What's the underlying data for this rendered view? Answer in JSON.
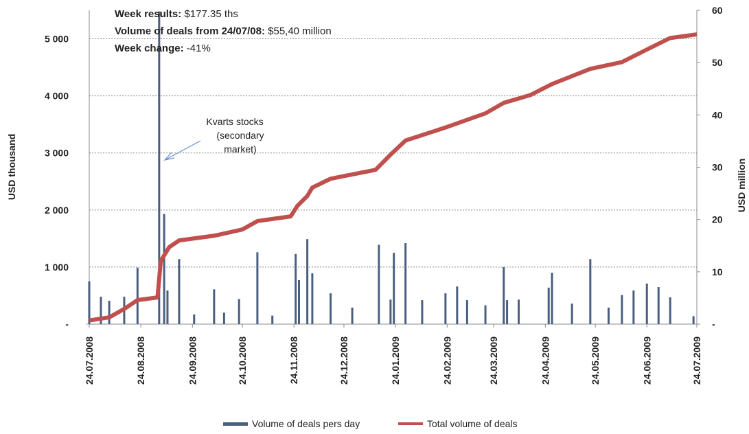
{
  "chart_data": {
    "type": "bar-line",
    "ylabel": "USD thousand",
    "y2label": "USD million",
    "notes": [
      {
        "label": "Week results:",
        "value": "$177.35 ths"
      },
      {
        "label": "Volume of deals from 24/07/08:",
        "value": "$55,40 million"
      },
      {
        "label": "Week change:",
        "value": "-41%"
      }
    ],
    "annotation": [
      "Kvarts stocks",
      "(secondary",
      "market)"
    ],
    "xlim": [
      "24.07.2008",
      "24.07.2009"
    ],
    "xticks": [
      "24.07.2008",
      "24.08.2008",
      "24.09.2008",
      "24.10.2008",
      "24.11.2008",
      "24.12.2008",
      "24.01.2009",
      "24.02.2009",
      "24.03.2009",
      "24.04.2009",
      "24.05.2009",
      "24.06.2009",
      "24.07.2009"
    ],
    "ylim": [
      0,
      5500
    ],
    "yticks": [
      {
        "value": 0,
        "label": "-"
      },
      {
        "value": 1000,
        "label": "1 000"
      },
      {
        "value": 2000,
        "label": "2 000"
      },
      {
        "value": 3000,
        "label": "3 000"
      },
      {
        "value": 4000,
        "label": "4 000"
      },
      {
        "value": 5000,
        "label": "5 000"
      }
    ],
    "y2lim": [
      0,
      60
    ],
    "y2ticks": [
      {
        "value": 0,
        "label": "-"
      },
      10,
      20,
      30,
      40,
      50,
      60
    ],
    "grid": true,
    "series": [
      {
        "name": "Volume of deals pers day",
        "type": "bar",
        "color": "#4a5f80",
        "x": [
          "24.07.2008",
          "31.07.2008",
          "05.08.2008",
          "14.08.2008",
          "22.08.2008",
          "04.09.2008",
          "07.09.2008",
          "09.09.2008",
          "16.09.2008",
          "25.09.2008",
          "07.10.2008",
          "13.10.2008",
          "22.10.2008",
          "02.11.2008",
          "11.11.2008",
          "25.11.2008",
          "27.11.2008",
          "02.12.2008",
          "05.12.2008",
          "16.12.2008",
          "29.12.2008",
          "14.01.2009",
          "21.01.2009",
          "23.01.2009",
          "30.01.2009",
          "09.02.2009",
          "23.02.2009",
          "02.03.2009",
          "08.03.2009",
          "19.03.2009",
          "30.03.2009",
          "01.04.2009",
          "08.04.2009",
          "26.04.2009",
          "28.04.2009",
          "10.05.2009",
          "21.05.2009",
          "01.06.2009",
          "09.06.2009",
          "16.06.2009",
          "24.06.2009",
          "01.07.2009",
          "08.07.2009",
          "22.07.2009"
        ],
        "values": [
          750,
          480,
          410,
          480,
          990,
          5480,
          1930,
          590,
          1140,
          170,
          610,
          200,
          440,
          1260,
          150,
          1230,
          770,
          1490,
          890,
          540,
          290,
          1390,
          430,
          1250,
          1420,
          420,
          540,
          660,
          420,
          330,
          1000,
          420,
          430,
          640,
          900,
          360,
          1140,
          290,
          510,
          590,
          710,
          650,
          470,
          140
        ]
      },
      {
        "name": "Total volume of deals",
        "type": "line",
        "axis": "y2",
        "color": "#c0504d",
        "x": [
          "24.07.2008",
          "05.08.2008",
          "14.08.2008",
          "22.08.2008",
          "03.09.2008",
          "05.09.2008",
          "10.09.2008",
          "16.09.2008",
          "07.10.2008",
          "24.10.2008",
          "02.11.2008",
          "22.11.2008",
          "26.11.2008",
          "02.12.2008",
          "05.12.2008",
          "16.12.2008",
          "12.01.2009",
          "21.01.2009",
          "30.01.2009",
          "24.02.2009",
          "19.03.2009",
          "30.03.2009",
          "15.04.2009",
          "28.04.2009",
          "21.05.2009",
          "09.06.2009",
          "24.06.2009",
          "08.07.2009",
          "24.07.2009"
        ],
        "values": [
          0.7,
          1.3,
          2.9,
          4.6,
          5.1,
          12.1,
          14.7,
          16.0,
          16.9,
          18.1,
          19.7,
          20.6,
          22.6,
          24.5,
          26.1,
          27.8,
          29.5,
          32.4,
          35.1,
          37.7,
          40.3,
          42.3,
          43.8,
          45.9,
          48.8,
          50.1,
          52.5,
          54.7,
          55.4
        ]
      }
    ]
  }
}
